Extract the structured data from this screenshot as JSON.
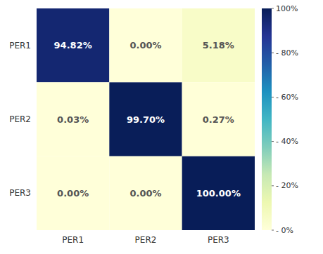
{
  "chart_data": {
    "type": "heatmap",
    "categories": [
      "PER1",
      "PER2",
      "PER3"
    ],
    "rows": [
      "PER1",
      "PER2",
      "PER3"
    ],
    "values": [
      [
        94.82,
        0.0,
        5.18
      ],
      [
        0.03,
        99.7,
        0.27
      ],
      [
        0.0,
        0.0,
        100.0
      ]
    ],
    "value_labels": [
      [
        "94.82%",
        "0.00%",
        "5.18%"
      ],
      [
        "0.03%",
        "99.70%",
        "0.27%"
      ],
      [
        "0.00%",
        "0.00%",
        "100.00%"
      ]
    ],
    "data_labels": true,
    "colorbar_range": [
      0,
      100
    ],
    "colorbar_ticks": [
      {
        "value": 0,
        "label": "- 0%"
      },
      {
        "value": 20,
        "label": "- 20%"
      },
      {
        "value": 40,
        "label": "- 40%"
      },
      {
        "value": 60,
        "label": "- 60%"
      },
      {
        "value": 80,
        "label": "- 80%"
      },
      {
        "value": 100,
        "label": "100%"
      }
    ]
  }
}
